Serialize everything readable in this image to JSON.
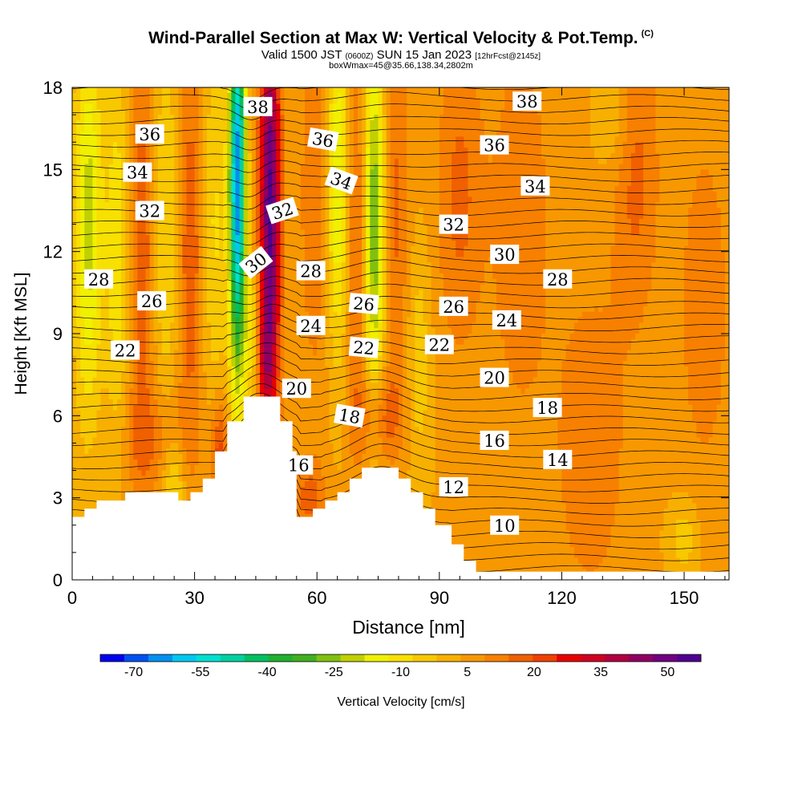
{
  "header": {
    "title": "Wind-Parallel Section at Max W: Vertical Velocity & Pot.Temp.",
    "copyright": "(C)",
    "valid_main": "Valid 1500 JST",
    "valid_utc": "(0600Z)",
    "valid_date": "SUN 15 Jan 2023",
    "forecast": "[12hrFcst@2145z]",
    "box_info": "boxWmax=45@35.66,138.34,2802m"
  },
  "chart_data": {
    "type": "heatmap",
    "xlabel": "Distance [nm]",
    "ylabel": "Height [Kft MSL]",
    "xlim": [
      0,
      161
    ],
    "ylim": [
      0,
      18
    ],
    "x_ticks": [
      "0",
      "30",
      "60",
      "90",
      "120",
      "150"
    ],
    "y_ticks": [
      "0",
      "3",
      "6",
      "9",
      "12",
      "15",
      "18"
    ],
    "colorbar": {
      "label": "Vertical Velocity [cm/s]",
      "tick_labels": [
        "-70",
        "-55",
        "-40",
        "-25",
        "-10",
        "5",
        "20",
        "35",
        "50"
      ],
      "colors": [
        "#0000f0",
        "#0050f0",
        "#0090f0",
        "#00c8f0",
        "#00e0d0",
        "#00d0a0",
        "#00c060",
        "#20b030",
        "#40b020",
        "#80c010",
        "#c0d000",
        "#f0f000",
        "#f8e000",
        "#f8c800",
        "#f8b000",
        "#f89800",
        "#f88000",
        "#f06000",
        "#f04000",
        "#e80000",
        "#d00020",
        "#b00040",
        "#900060",
        "#700080",
        "#500090"
      ]
    },
    "terrain": [
      [
        0,
        2.3
      ],
      [
        3,
        2.3
      ],
      [
        3,
        2.6
      ],
      [
        6,
        2.6
      ],
      [
        6,
        2.9
      ],
      [
        13,
        2.9
      ],
      [
        13,
        3.2
      ],
      [
        26,
        3.2
      ],
      [
        26,
        2.9
      ],
      [
        29,
        2.9
      ],
      [
        29,
        3.2
      ],
      [
        32,
        3.2
      ],
      [
        32,
        3.7
      ],
      [
        35,
        3.7
      ],
      [
        35,
        4.7
      ],
      [
        38,
        4.7
      ],
      [
        38,
        5.8
      ],
      [
        42,
        5.8
      ],
      [
        42,
        6.7
      ],
      [
        51,
        6.7
      ],
      [
        51,
        5.8
      ],
      [
        54,
        5.8
      ],
      [
        54,
        4.7
      ],
      [
        55,
        4.7
      ],
      [
        55,
        2.3
      ],
      [
        59,
        2.3
      ],
      [
        59,
        2.6
      ],
      [
        62,
        2.6
      ],
      [
        62,
        2.9
      ],
      [
        65,
        2.9
      ],
      [
        65,
        3.2
      ],
      [
        68,
        3.2
      ],
      [
        68,
        3.7
      ],
      [
        71,
        3.7
      ],
      [
        71,
        4.1
      ],
      [
        80,
        4.1
      ],
      [
        80,
        3.7
      ],
      [
        83,
        3.7
      ],
      [
        83,
        3.2
      ],
      [
        86,
        3.2
      ],
      [
        86,
        2.6
      ],
      [
        89,
        2.6
      ],
      [
        89,
        2.0
      ],
      [
        93,
        2.0
      ],
      [
        93,
        1.3
      ],
      [
        96,
        1.3
      ],
      [
        96,
        0.7
      ],
      [
        99,
        0.7
      ],
      [
        99,
        0.3
      ],
      [
        161,
        0.3
      ],
      [
        161,
        0
      ],
      [
        0,
        0
      ]
    ],
    "w_sources": [
      {
        "x": 40.5,
        "y": 14.5,
        "w": -70,
        "sx": 1.4,
        "sy": 5.0
      },
      {
        "x": 48.5,
        "y": 13.5,
        "w": 50,
        "sx": 1.8,
        "sy": 5.5
      },
      {
        "x": 44.0,
        "y": 9.0,
        "w": -15,
        "sx": 1.5,
        "sy": 1.8
      },
      {
        "x": 47.0,
        "y": 8.0,
        "w": 15,
        "sx": 1.5,
        "sy": 1.5
      },
      {
        "x": 4.0,
        "y": 13.0,
        "w": -25,
        "sx": 2.5,
        "sy": 5.0
      },
      {
        "x": 11.0,
        "y": 12.0,
        "w": -15,
        "sx": 2.0,
        "sy": 5.0
      },
      {
        "x": 17.0,
        "y": 12.0,
        "w": 15,
        "sx": 2.0,
        "sy": 5.0
      },
      {
        "x": 23.0,
        "y": 13.0,
        "w": -12,
        "sx": 2.0,
        "sy": 5.0
      },
      {
        "x": 29.0,
        "y": 12.0,
        "w": 15,
        "sx": 2.0,
        "sy": 5.0
      },
      {
        "x": 35.0,
        "y": 13.0,
        "w": -12,
        "sx": 2.0,
        "sy": 5.0
      },
      {
        "x": 60.0,
        "y": 14.0,
        "w": 10,
        "sx": 3.0,
        "sy": 5.0
      },
      {
        "x": 65.0,
        "y": 14.5,
        "w": -25,
        "sx": 2.0,
        "sy": 4.5
      },
      {
        "x": 70.0,
        "y": 12.5,
        "w": 15,
        "sx": 2.0,
        "sy": 5.0
      },
      {
        "x": 74.0,
        "y": 13.0,
        "w": -35,
        "sx": 2.0,
        "sy": 5.0
      },
      {
        "x": 79.0,
        "y": 13.5,
        "w": 12,
        "sx": 2.5,
        "sy": 5.0
      },
      {
        "x": 85.0,
        "y": 8.0,
        "w": -10,
        "sx": 2.0,
        "sy": 3.0
      },
      {
        "x": 75.0,
        "y": 6.0,
        "w": 15,
        "sx": 4.0,
        "sy": 1.2
      },
      {
        "x": 25.0,
        "y": 3.5,
        "w": -14,
        "sx": 2.0,
        "sy": 1.2
      },
      {
        "x": 20.0,
        "y": 5.0,
        "w": 10,
        "sx": 6.0,
        "sy": 1.5
      },
      {
        "x": 36.0,
        "y": 4.5,
        "w": 20,
        "sx": 1.5,
        "sy": 1.5
      },
      {
        "x": 58.0,
        "y": 3.0,
        "w": 12,
        "sx": 3.0,
        "sy": 1.0
      },
      {
        "x": 95.0,
        "y": 14.0,
        "w": 12,
        "sx": 4.0,
        "sy": 4.0
      },
      {
        "x": 110.0,
        "y": 13.0,
        "w": 10,
        "sx": 5.0,
        "sy": 5.0
      },
      {
        "x": 133.0,
        "y": 17.0,
        "w": -8,
        "sx": 3.0,
        "sy": 1.5
      },
      {
        "x": 138.0,
        "y": 15.0,
        "w": 12,
        "sx": 4.0,
        "sy": 4.0
      },
      {
        "x": 127.0,
        "y": 5.0,
        "w": 10,
        "sx": 6.0,
        "sy": 4.0
      },
      {
        "x": 150.0,
        "y": 1.5,
        "w": -10,
        "sx": 2.5,
        "sy": 1.0
      },
      {
        "x": 155.0,
        "y": 10.0,
        "w": 8,
        "sx": 5.0,
        "sy": 5.0
      }
    ],
    "contour_labels": [
      {
        "text": "38",
        "x": 45.5,
        "y": 17.3,
        "angle": 0
      },
      {
        "text": "36",
        "x": 19.0,
        "y": 16.3,
        "angle": 0
      },
      {
        "text": "36",
        "x": 61.5,
        "y": 16.1,
        "angle": 10
      },
      {
        "text": "34",
        "x": 16.0,
        "y": 14.9,
        "angle": 0
      },
      {
        "text": "34",
        "x": 66.0,
        "y": 14.6,
        "angle": 20
      },
      {
        "text": "32",
        "x": 19.0,
        "y": 13.5,
        "angle": 0
      },
      {
        "text": "32",
        "x": 51.5,
        "y": 13.5,
        "angle": -18
      },
      {
        "text": "30",
        "x": 45.0,
        "y": 11.6,
        "angle": -38
      },
      {
        "text": "28",
        "x": 6.5,
        "y": 11.0,
        "angle": 0
      },
      {
        "text": "28",
        "x": 58.5,
        "y": 11.3,
        "angle": 0
      },
      {
        "text": "26",
        "x": 19.5,
        "y": 10.2,
        "angle": 0
      },
      {
        "text": "26",
        "x": 71.5,
        "y": 10.1,
        "angle": 5
      },
      {
        "text": "24",
        "x": 58.5,
        "y": 9.3,
        "angle": 0
      },
      {
        "text": "22",
        "x": 13.0,
        "y": 8.4,
        "angle": 0
      },
      {
        "text": "22",
        "x": 71.5,
        "y": 8.5,
        "angle": 5
      },
      {
        "text": "20",
        "x": 55.0,
        "y": 7.0,
        "angle": 0
      },
      {
        "text": "18",
        "x": 68.0,
        "y": 6.0,
        "angle": 10
      },
      {
        "text": "16",
        "x": 55.5,
        "y": 4.2,
        "angle": 0
      },
      {
        "text": "38",
        "x": 111.5,
        "y": 17.5,
        "angle": 0
      },
      {
        "text": "36",
        "x": 103.5,
        "y": 15.9,
        "angle": 0
      },
      {
        "text": "34",
        "x": 113.5,
        "y": 14.4,
        "angle": 0
      },
      {
        "text": "32",
        "x": 93.5,
        "y": 13.0,
        "angle": 0
      },
      {
        "text": "30",
        "x": 106.0,
        "y": 11.9,
        "angle": 0
      },
      {
        "text": "28",
        "x": 119.0,
        "y": 11.0,
        "angle": 0
      },
      {
        "text": "26",
        "x": 93.5,
        "y": 10.0,
        "angle": 0
      },
      {
        "text": "24",
        "x": 106.5,
        "y": 9.5,
        "angle": 0
      },
      {
        "text": "22",
        "x": 90.0,
        "y": 8.6,
        "angle": 0
      },
      {
        "text": "20",
        "x": 103.5,
        "y": 7.4,
        "angle": 0
      },
      {
        "text": "18",
        "x": 116.5,
        "y": 6.3,
        "angle": 0
      },
      {
        "text": "16",
        "x": 103.5,
        "y": 5.1,
        "angle": 0
      },
      {
        "text": "14",
        "x": 119.0,
        "y": 4.4,
        "angle": 0
      },
      {
        "text": "12",
        "x": 93.5,
        "y": 3.4,
        "angle": 0
      },
      {
        "text": "10",
        "x": 106.0,
        "y": 2.0,
        "angle": 0
      }
    ]
  }
}
